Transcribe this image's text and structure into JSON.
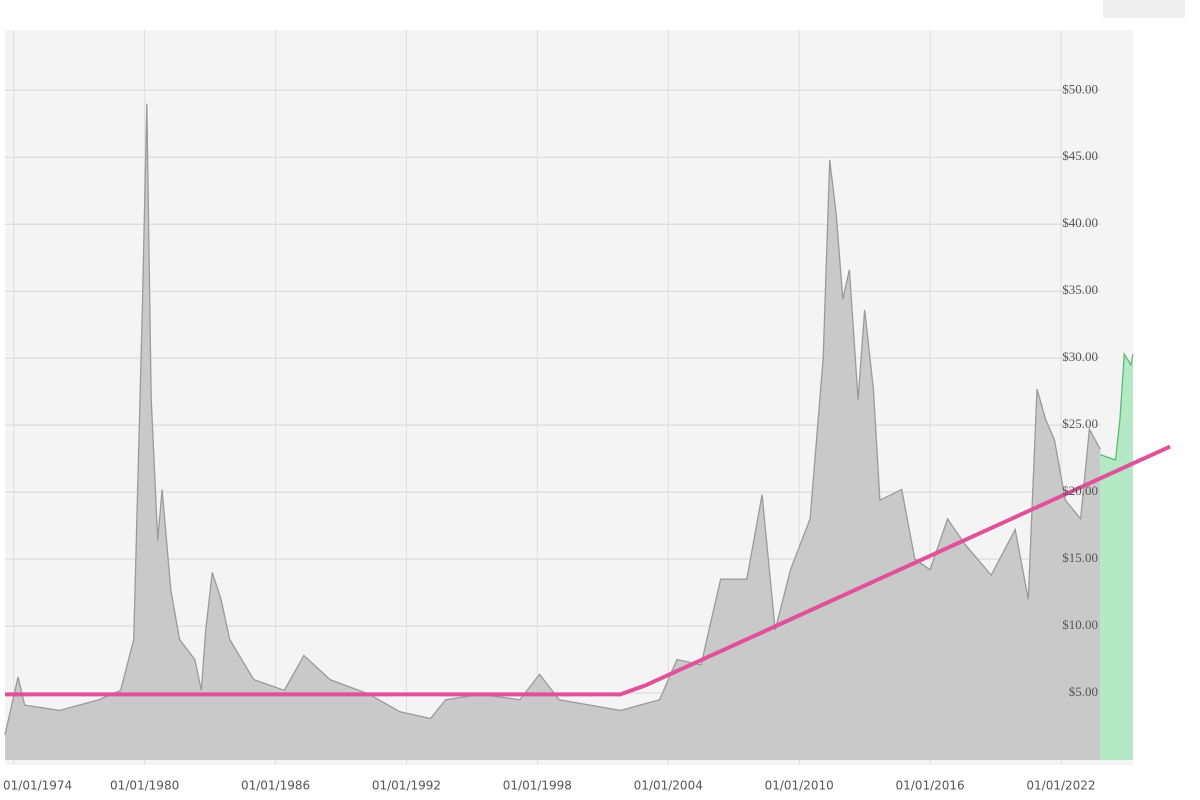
{
  "chart_data": {
    "type": "area",
    "xlim": [
      1973.6,
      2025.3
    ],
    "xticks": [
      {
        "value": 1974,
        "label": "01/01/1974"
      },
      {
        "value": 1980,
        "label": "01/01/1980"
      },
      {
        "value": 1986,
        "label": "01/01/1986"
      },
      {
        "value": 1992,
        "label": "01/01/1992"
      },
      {
        "value": 1998,
        "label": "01/01/1998"
      },
      {
        "value": 2004,
        "label": "01/01/2004"
      },
      {
        "value": 2010,
        "label": "01/01/2010"
      },
      {
        "value": 2016,
        "label": "01/01/2016"
      },
      {
        "value": 2022,
        "label": "01/01/2022"
      }
    ],
    "ylim": [
      0,
      54.5
    ],
    "yticks": [
      {
        "value": 5,
        "label": "$5.00"
      },
      {
        "value": 10,
        "label": "$10.00"
      },
      {
        "value": 15,
        "label": "$15.00"
      },
      {
        "value": 20,
        "label": "$20.00"
      },
      {
        "value": 25,
        "label": "$25.00"
      },
      {
        "value": 30,
        "label": "$30.00"
      },
      {
        "value": 35,
        "label": "$35.00"
      },
      {
        "value": 40,
        "label": "$40.00"
      },
      {
        "value": 45,
        "label": "$45.00"
      },
      {
        "value": 50,
        "label": "$50.00"
      }
    ],
    "grid": true,
    "series": [
      {
        "type": "area",
        "color": "#c9c9c9",
        "stroke": "#9a9a9a",
        "x": [
          1973.6,
          1974.2,
          1974.5,
          1976.1,
          1977.9,
          1978.9,
          1979.5,
          1979.9,
          1980.1,
          1980.3,
          1980.6,
          1980.8,
          1981.2,
          1981.6,
          1982.3,
          1982.6,
          1982.8,
          1983.1,
          1983.5,
          1983.9,
          1985.0,
          1986.4,
          1987.3,
          1988.5,
          1990.3,
          1991.7,
          1993.1,
          1993.8,
          1995.4,
          1997.2,
          1998.1,
          1999.0,
          2001.8,
          2003.6,
          2004.4,
          2005.5,
          2006.4,
          2007.6,
          2008.3,
          2008.9,
          2009.6,
          2010.5,
          2011.1,
          2011.4,
          2011.7,
          2012.0,
          2012.3,
          2012.7,
          2013.0,
          2013.4,
          2013.7,
          2014.7,
          2015.3,
          2016.0,
          2016.8,
          2017.6,
          2018.8,
          2019.9,
          2020.5,
          2020.9,
          2021.3,
          2021.7,
          2022.2,
          2022.9,
          2023.3,
          2023.8
        ],
        "values": [
          1.9,
          6.2,
          4.1,
          3.7,
          4.5,
          5.2,
          9,
          34,
          49,
          27,
          16.4,
          20.2,
          12.7,
          9,
          7.5,
          5.2,
          9.7,
          14,
          12,
          9,
          6,
          5.2,
          7.8,
          6,
          4.9,
          3.6,
          3.1,
          4.5,
          4.9,
          4.5,
          6.4,
          4.5,
          3.7,
          4.5,
          7.5,
          7.1,
          13.5,
          13.5,
          19.8,
          9.7,
          14.2,
          18,
          30,
          44.8,
          40.7,
          34.4,
          36.6,
          26.9,
          33.6,
          27.7,
          19.4,
          20.2,
          15,
          14.2,
          18,
          16.1,
          13.8,
          17.2,
          12,
          27.7,
          25.4,
          23.9,
          19.4,
          18,
          24.7,
          23.2
        ]
      },
      {
        "type": "area",
        "color": "#b5e8c4",
        "stroke": "#5cb874",
        "x": [
          2023.8,
          2024.5,
          2024.7,
          2024.9,
          2025.2,
          2025.3
        ],
        "values": [
          22.8,
          22.4,
          25.4,
          30.3,
          29.5,
          30.3
        ]
      },
      {
        "type": "line",
        "color": "#e0509b",
        "x": [
          1973.6,
          2001.8,
          2003.0,
          2027.0
        ],
        "values": [
          4.9,
          4.9,
          5.6,
          23.4
        ]
      }
    ]
  }
}
